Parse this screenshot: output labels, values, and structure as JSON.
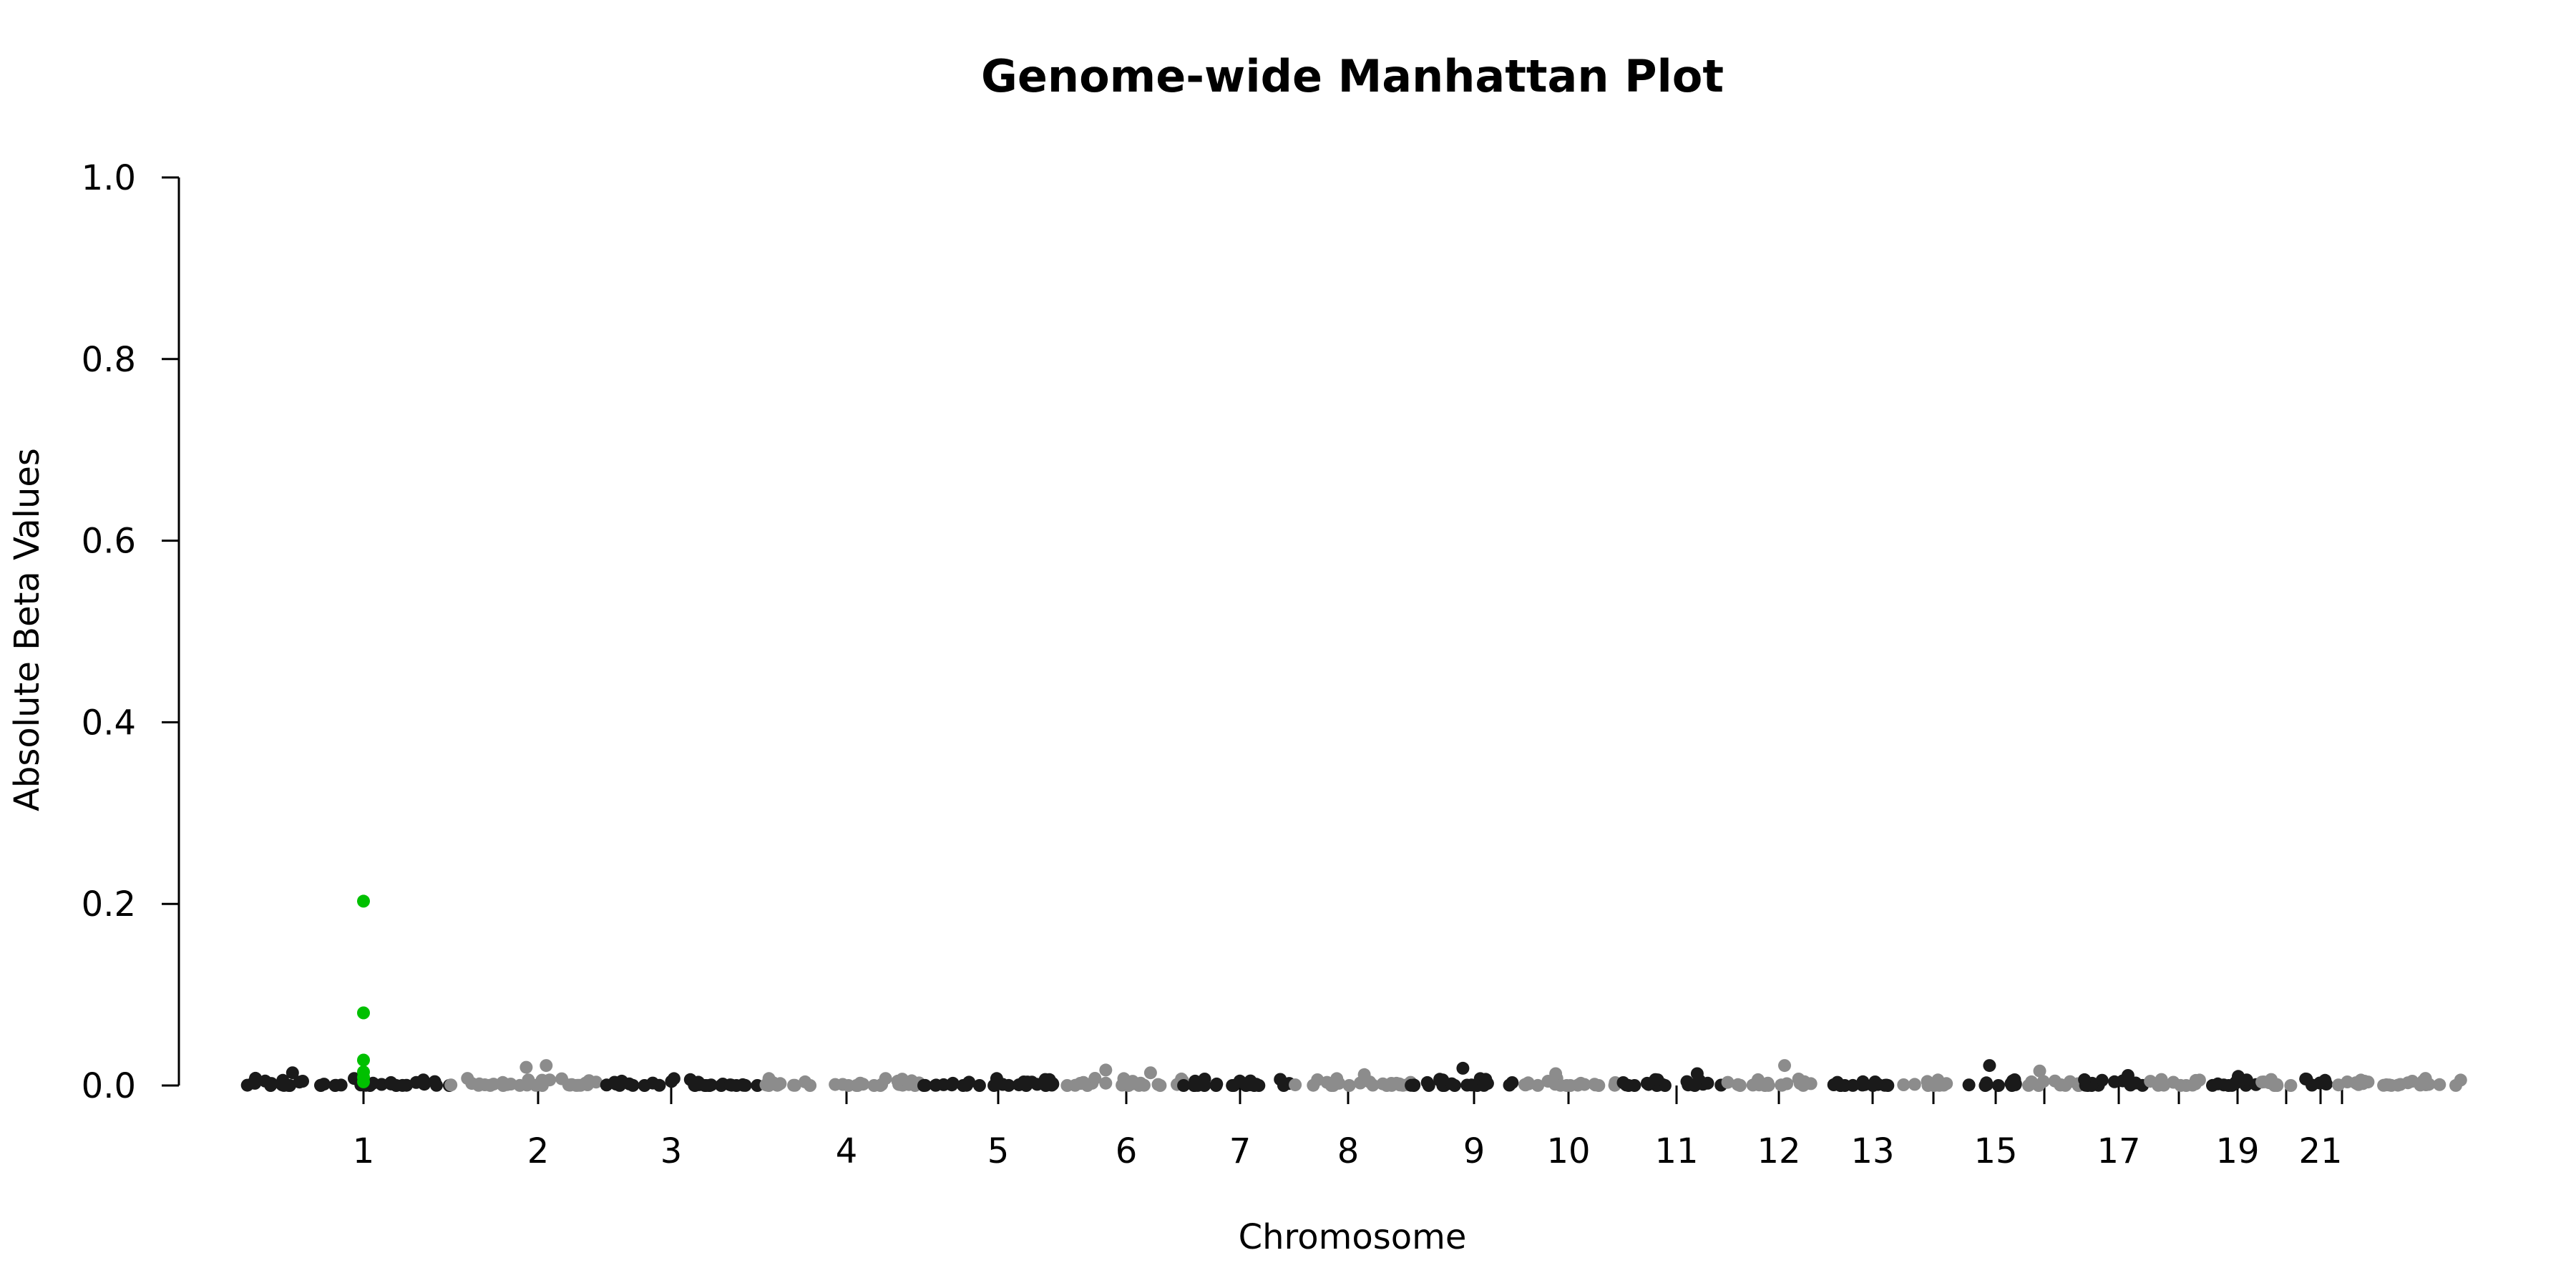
{
  "chart_data": {
    "type": "scatter",
    "title": "Genome-wide Manhattan Plot",
    "xlabel": "Chromosome",
    "ylabel": "Absolute Beta Values",
    "ylim": [
      0,
      1
    ],
    "y_ticks": [
      "0.0",
      "0.2",
      "0.4",
      "0.6",
      "0.8",
      "1.0"
    ],
    "x_tick_labels": [
      "1",
      "2",
      "3",
      "4",
      "5",
      "6",
      "7",
      "8",
      "9",
      "10",
      "11",
      "12",
      "13",
      "15",
      "17",
      "19",
      "21"
    ],
    "chromosomes": [
      "1",
      "2",
      "3",
      "4",
      "5",
      "6",
      "7",
      "8",
      "9",
      "10",
      "11",
      "12",
      "13",
      "14",
      "15",
      "16",
      "17",
      "18",
      "19",
      "20",
      "21",
      "22"
    ],
    "chromosome_colors": [
      "#1a1a1a",
      "#8c8c8c"
    ],
    "highlight_color": "#00c000",
    "grid": false,
    "legend": "none",
    "highlight_points": [
      {
        "chromosome": "1",
        "y": 0.203
      },
      {
        "chromosome": "1",
        "y": 0.08
      },
      {
        "chromosome": "1",
        "y": 0.028
      },
      {
        "chromosome": "1",
        "y": 0.015
      },
      {
        "chromosome": "1",
        "y": 0.009
      },
      {
        "chromosome": "1",
        "y": 0.004
      }
    ],
    "notable_points": [
      {
        "chromosome": "1",
        "y": 0.014
      },
      {
        "chromosome": "2",
        "y": 0.022
      },
      {
        "chromosome": "2",
        "y": 0.02
      },
      {
        "chromosome": "6",
        "y": 0.017
      },
      {
        "chromosome": "6",
        "y": 0.014
      },
      {
        "chromosome": "8",
        "y": 0.012
      },
      {
        "chromosome": "9",
        "y": 0.019
      },
      {
        "chromosome": "10",
        "y": 0.013
      },
      {
        "chromosome": "11",
        "y": 0.013
      },
      {
        "chromosome": "12",
        "y": 0.022
      },
      {
        "chromosome": "15",
        "y": 0.022
      },
      {
        "chromosome": "16",
        "y": 0.016
      },
      {
        "chromosome": "17",
        "y": 0.011
      },
      {
        "chromosome": "19",
        "y": 0.01
      }
    ]
  }
}
